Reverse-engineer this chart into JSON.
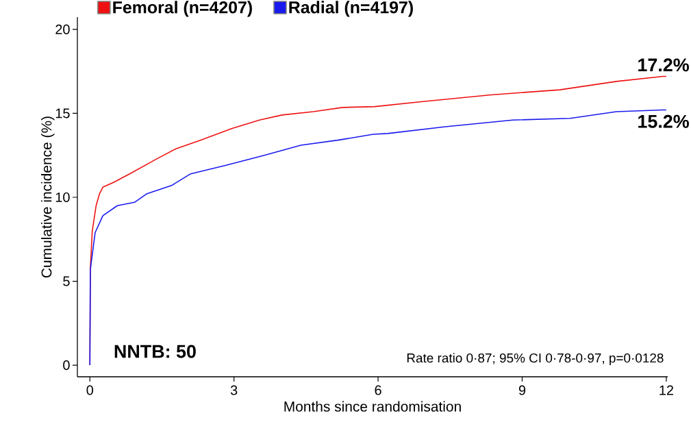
{
  "chart_data": {
    "type": "line",
    "xlabel": "Months since randomisation",
    "ylabel": "Cumulative incidence (%)",
    "xlim": [
      -0.26,
      12.03
    ],
    "ylim": [
      -0.69,
      20.73
    ],
    "xticks": [
      0,
      3,
      6,
      9,
      12
    ],
    "yticks": [
      0,
      5,
      10,
      15,
      20
    ],
    "grid": false,
    "legend": "top",
    "marker": "none",
    "line_style": "solid",
    "series": [
      {
        "name": "Femoral (n=4207)",
        "color": "#ee1111",
        "x": [
          0,
          0.01,
          0.05,
          0.13,
          0.2,
          0.27,
          0.5,
          0.83,
          1.4,
          1.8,
          2.3,
          2.96,
          3.53,
          4.0,
          4.65,
          5.26,
          5.93,
          6.93,
          8.35,
          9.78,
          10.96,
          11.93,
          12
        ],
        "values": [
          0,
          5.8,
          8.0,
          9.5,
          10.2,
          10.6,
          10.9,
          11.4,
          12.3,
          12.9,
          13.4,
          14.1,
          14.6,
          14.9,
          15.1,
          15.35,
          15.4,
          15.7,
          16.1,
          16.4,
          16.9,
          17.2,
          17.2
        ]
      },
      {
        "name": "Radial (n=4197)",
        "color": "#1a1aee",
        "x": [
          0,
          0.01,
          0.11,
          0.27,
          0.57,
          0.93,
          1.18,
          1.7,
          2.1,
          2.82,
          3.63,
          4.39,
          5.16,
          5.9,
          6.2,
          7.4,
          8.8,
          10.0,
          10.96,
          11.93,
          12
        ],
        "values": [
          0,
          5.7,
          7.9,
          8.9,
          9.5,
          9.7,
          10.2,
          10.7,
          11.4,
          11.9,
          12.5,
          13.1,
          13.4,
          13.75,
          13.8,
          14.2,
          14.6,
          14.7,
          15.1,
          15.2,
          15.2
        ]
      }
    ],
    "annotations": [
      {
        "text": "17.2%",
        "x": 12,
        "y": 17.2
      },
      {
        "text": "15.2%",
        "x": 12,
        "y": 15.2
      },
      "NNTB: 50",
      "Rate ratio 0·87; 95% CI 0·78-0·97, p=0·0128"
    ]
  }
}
